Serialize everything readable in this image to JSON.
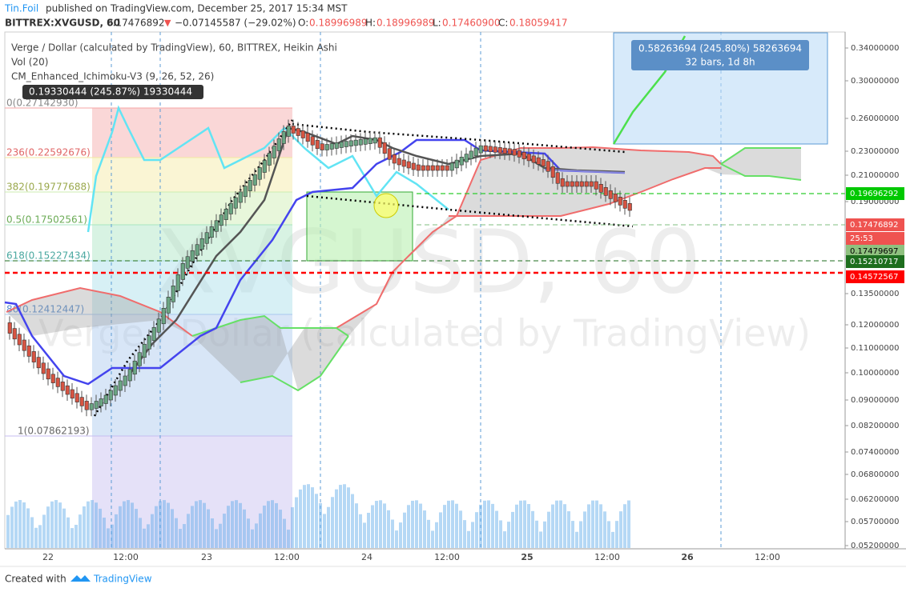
{
  "header": {
    "author": "Tin.Foil",
    "published": "published on TradingView.com, December 25, 2017 15:34 MST"
  },
  "symbol_bar": {
    "symbol": "BITTREX:XVGUSD, 60",
    "price": "0.17476892",
    "arrow": "▼",
    "change": "−0.07145587 (−29.02%)",
    "open_label": "O:",
    "open": "0.18996989",
    "high_label": "H:",
    "high": "0.18996989",
    "low_label": "L:",
    "low": "0.17460900",
    "close_label": "C:",
    "close": "0.18059417"
  },
  "legend": [
    "Verge / Dollar (calculated by TradingView), 60, BITTREX, Heikin Ashi",
    "Vol (20)",
    "CM_Enhanced_Ichimoku-V3 (9, 26, 52, 26)"
  ],
  "measure_left": "0.19330444 (245.87%) 19330444",
  "measure_right": {
    "line1": "0.58263694 (245.80%) 58263694",
    "line2": "32 bars, 1d 8h"
  },
  "fib_levels": [
    "0(0.27142930)",
    "236(0.22592676)",
    "382(0.19777688)",
    "0.5(0.17502561)",
    "618(0.15227434)",
    "86(0.12412447)",
    "1(0.07862193)"
  ],
  "price_axis": [
    "0.34000000",
    "0.30000000",
    "0.26000000",
    "0.23000000",
    "0.21000000",
    "0.19000000",
    "0.13500000",
    "0.12000000",
    "0.11000000",
    "0.10000000",
    "0.09000000",
    "0.08200000",
    "0.07400000",
    "0.06800000",
    "0.06200000",
    "0.05700000",
    "0.05200000"
  ],
  "price_badges": [
    {
      "text": "0.19696292",
      "color": "#00c800"
    },
    {
      "text": "0.17476892",
      "color": "#ef5350"
    },
    {
      "text": "25:53",
      "color": "#ef5350"
    },
    {
      "text": "0.17479697",
      "color": "#8fc17f"
    },
    {
      "text": "0.15210717",
      "color": "#1e6e1e"
    },
    {
      "text": "0.14572567",
      "color": "#ff0000"
    }
  ],
  "time_axis": [
    "22",
    "12:00",
    "23",
    "12:00",
    "24",
    "12:00",
    "25",
    "12:00",
    "26",
    "12:00"
  ],
  "watermark": {
    "symbol": "XVGUSD, 60",
    "name": "Verge / Dollar (calculated by TradingView)"
  },
  "footer": {
    "created": "Created with",
    "brand": "TradingView"
  }
}
